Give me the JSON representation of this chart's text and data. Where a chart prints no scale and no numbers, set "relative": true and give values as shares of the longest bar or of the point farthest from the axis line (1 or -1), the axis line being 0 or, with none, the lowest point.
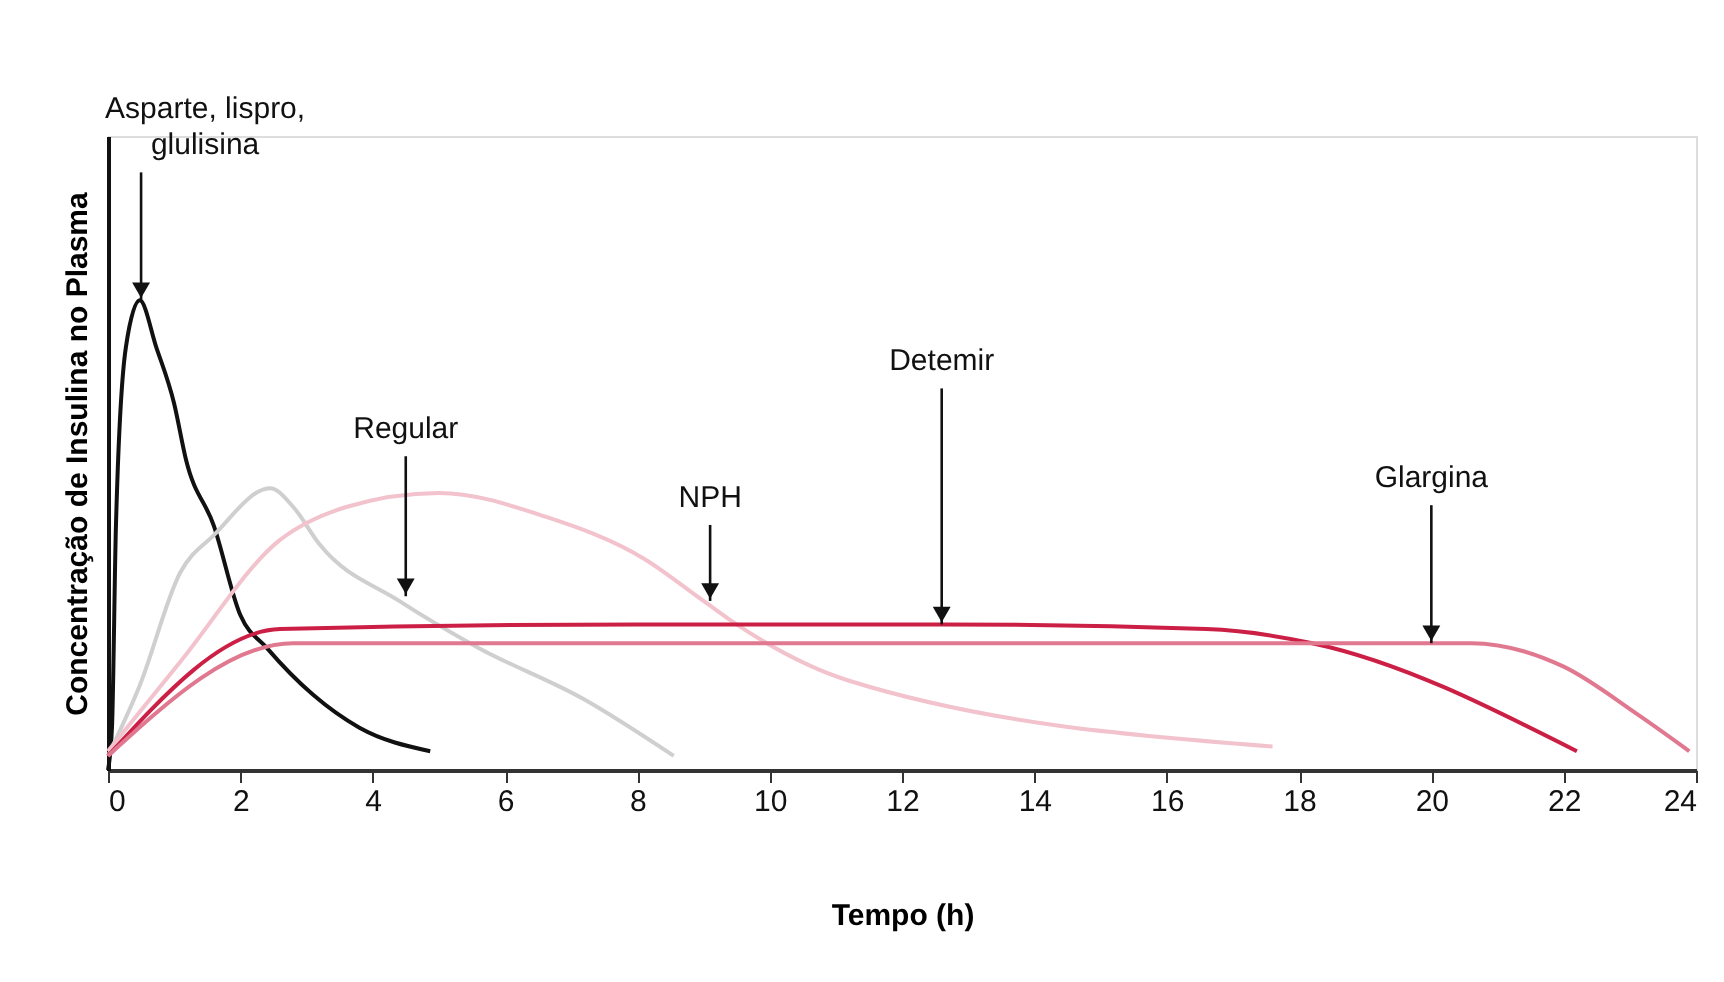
{
  "chart_data": {
    "type": "line",
    "relative": true,
    "xlabel": "Tempo (h)",
    "ylabel": "Concentração de Insulina no Plasma",
    "xlim": [
      0,
      24
    ],
    "xticks": [
      0,
      2,
      4,
      6,
      8,
      10,
      12,
      14,
      16,
      18,
      20,
      22,
      24
    ],
    "grid": false,
    "marker": "none",
    "line_style": "solid",
    "series": [
      {
        "color": "#111111",
        "x": [
          0,
          0.06,
          0.12,
          0.27,
          0.48,
          0.73,
          1.0,
          1.18,
          1.6,
          2.0,
          2.4,
          3.1,
          3.8,
          4.87
        ],
        "values": [
          0,
          0.09,
          0.52,
          0.9,
          1.0,
          0.9,
          0.78,
          0.66,
          0.52,
          0.33,
          0.26,
          0.16,
          0.09,
          0.04
        ]
      },
      {
        "color": "#cfcfcf",
        "x": [
          0,
          0.48,
          1.09,
          1.6,
          2.45,
          2.8,
          3.2,
          4.4,
          5.6,
          7.2,
          8.55
        ],
        "values": [
          0.03,
          0.18,
          0.42,
          0.5,
          0.6,
          0.56,
          0.48,
          0.36,
          0.26,
          0.15,
          0.03
        ]
      },
      {
        "color": "#f2c2cd",
        "x": [
          0,
          1.09,
          2.6,
          3.6,
          5.0,
          6.6,
          8.1,
          9.0,
          9.5,
          11.2,
          17.6
        ],
        "values": [
          0.04,
          0.23,
          0.49,
          0.56,
          0.59,
          0.54,
          0.45,
          0.36,
          0.31,
          0.19,
          0.05
        ]
      },
      {
        "color": "#cc1f45",
        "x": [
          0,
          2.6,
          8,
          12.6,
          16.6,
          18.2,
          22.2
        ],
        "values": [
          0.03,
          0.3,
          0.31,
          0.31,
          0.3,
          0.27,
          0.04
        ]
      },
      {
        "color": "#e07890",
        "x": [
          0,
          2.8,
          10,
          20.6,
          22.0,
          23.1,
          23.9
        ],
        "values": [
          0.03,
          0.27,
          0.27,
          0.27,
          0.22,
          0.12,
          0.04
        ]
      }
    ],
    "annotations": [
      {
        "text": "Asparte, lispro,\nglulisina",
        "x": 0.5,
        "y": 1.0
      },
      {
        "text": "Regular",
        "x": 4.5,
        "y": 0.37
      },
      {
        "text": "NPH",
        "x": 9.1,
        "y": 0.36
      },
      {
        "text": "Detemir",
        "x": 12.6,
        "y": 0.31
      },
      {
        "text": "Glargina",
        "x": 20,
        "y": 0.27
      }
    ]
  }
}
